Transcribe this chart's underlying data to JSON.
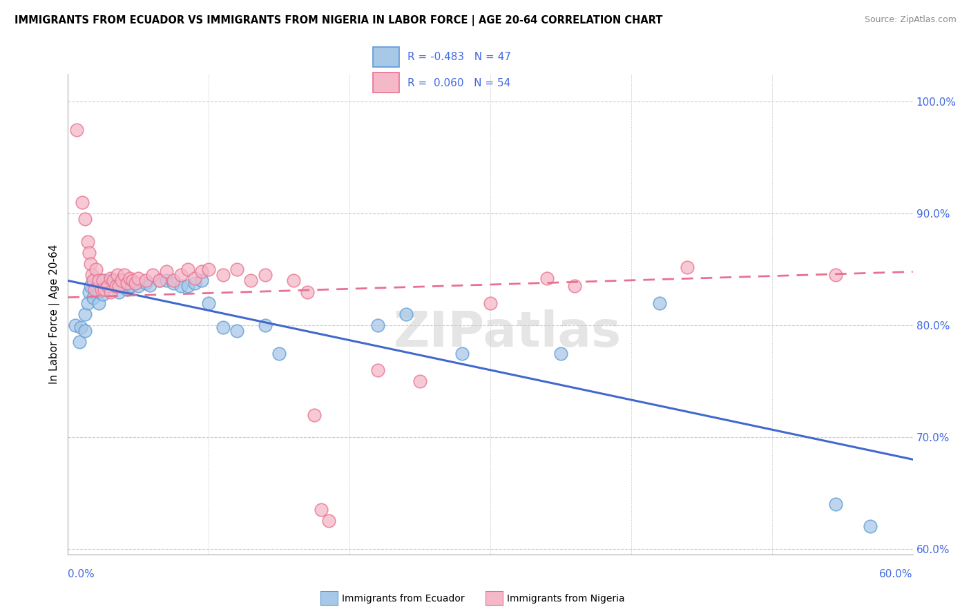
{
  "title": "IMMIGRANTS FROM ECUADOR VS IMMIGRANTS FROM NIGERIA IN LABOR FORCE | AGE 20-64 CORRELATION CHART",
  "source": "Source: ZipAtlas.com",
  "ylabel": "In Labor Force | Age 20-64",
  "y_ticks": [
    0.6,
    0.7,
    0.8,
    0.9,
    1.0
  ],
  "y_tick_labels": [
    "60.0%",
    "70.0%",
    "80.0%",
    "90.0%",
    "100.0%"
  ],
  "x_min": 0.0,
  "x_max": 0.6,
  "y_min": 0.595,
  "y_max": 1.025,
  "legend_r_ecuador": "-0.483",
  "legend_n_ecuador": "47",
  "legend_r_nigeria": "0.060",
  "legend_n_nigeria": "54",
  "watermark": "ZIPatlas",
  "ecuador_fill": "#A8C8E8",
  "ecuador_edge": "#5B9BD5",
  "nigeria_fill": "#F4B8C8",
  "nigeria_edge": "#E87090",
  "ecuador_line_color": "#4169CD",
  "nigeria_line_color": "#E87090",
  "ecuador_scatter": [
    [
      0.005,
      0.8
    ],
    [
      0.008,
      0.785
    ],
    [
      0.009,
      0.798
    ],
    [
      0.012,
      0.81
    ],
    [
      0.012,
      0.795
    ],
    [
      0.014,
      0.82
    ],
    [
      0.015,
      0.83
    ],
    [
      0.016,
      0.835
    ],
    [
      0.018,
      0.84
    ],
    [
      0.018,
      0.825
    ],
    [
      0.02,
      0.835
    ],
    [
      0.022,
      0.83
    ],
    [
      0.022,
      0.82
    ],
    [
      0.025,
      0.84
    ],
    [
      0.025,
      0.828
    ],
    [
      0.028,
      0.835
    ],
    [
      0.03,
      0.84
    ],
    [
      0.032,
      0.835
    ],
    [
      0.035,
      0.84
    ],
    [
      0.036,
      0.83
    ],
    [
      0.038,
      0.835
    ],
    [
      0.04,
      0.838
    ],
    [
      0.042,
      0.832
    ],
    [
      0.045,
      0.835
    ],
    [
      0.048,
      0.838
    ],
    [
      0.05,
      0.835
    ],
    [
      0.055,
      0.838
    ],
    [
      0.058,
      0.836
    ],
    [
      0.065,
      0.84
    ],
    [
      0.07,
      0.84
    ],
    [
      0.075,
      0.838
    ],
    [
      0.08,
      0.835
    ],
    [
      0.085,
      0.835
    ],
    [
      0.09,
      0.838
    ],
    [
      0.095,
      0.84
    ],
    [
      0.1,
      0.82
    ],
    [
      0.11,
      0.798
    ],
    [
      0.12,
      0.795
    ],
    [
      0.14,
      0.8
    ],
    [
      0.15,
      0.775
    ],
    [
      0.22,
      0.8
    ],
    [
      0.24,
      0.81
    ],
    [
      0.28,
      0.775
    ],
    [
      0.35,
      0.775
    ],
    [
      0.42,
      0.82
    ],
    [
      0.545,
      0.64
    ],
    [
      0.57,
      0.62
    ]
  ],
  "nigeria_scatter": [
    [
      0.006,
      0.975
    ],
    [
      0.01,
      0.91
    ],
    [
      0.012,
      0.895
    ],
    [
      0.014,
      0.875
    ],
    [
      0.015,
      0.865
    ],
    [
      0.016,
      0.855
    ],
    [
      0.017,
      0.845
    ],
    [
      0.018,
      0.84
    ],
    [
      0.019,
      0.832
    ],
    [
      0.02,
      0.85
    ],
    [
      0.022,
      0.84
    ],
    [
      0.024,
      0.832
    ],
    [
      0.025,
      0.84
    ],
    [
      0.026,
      0.832
    ],
    [
      0.028,
      0.835
    ],
    [
      0.03,
      0.842
    ],
    [
      0.03,
      0.83
    ],
    [
      0.032,
      0.84
    ],
    [
      0.034,
      0.835
    ],
    [
      0.035,
      0.845
    ],
    [
      0.036,
      0.835
    ],
    [
      0.038,
      0.84
    ],
    [
      0.04,
      0.845
    ],
    [
      0.042,
      0.838
    ],
    [
      0.044,
      0.842
    ],
    [
      0.046,
      0.84
    ],
    [
      0.048,
      0.838
    ],
    [
      0.05,
      0.842
    ],
    [
      0.055,
      0.84
    ],
    [
      0.06,
      0.845
    ],
    [
      0.065,
      0.84
    ],
    [
      0.07,
      0.848
    ],
    [
      0.075,
      0.84
    ],
    [
      0.08,
      0.845
    ],
    [
      0.085,
      0.85
    ],
    [
      0.09,
      0.842
    ],
    [
      0.095,
      0.848
    ],
    [
      0.1,
      0.85
    ],
    [
      0.11,
      0.845
    ],
    [
      0.12,
      0.85
    ],
    [
      0.13,
      0.84
    ],
    [
      0.14,
      0.845
    ],
    [
      0.16,
      0.84
    ],
    [
      0.17,
      0.83
    ],
    [
      0.175,
      0.72
    ],
    [
      0.18,
      0.635
    ],
    [
      0.185,
      0.625
    ],
    [
      0.22,
      0.76
    ],
    [
      0.25,
      0.75
    ],
    [
      0.3,
      0.82
    ],
    [
      0.34,
      0.842
    ],
    [
      0.36,
      0.835
    ],
    [
      0.44,
      0.852
    ],
    [
      0.545,
      0.845
    ]
  ],
  "ecuador_trend_x": [
    0.0,
    0.6
  ],
  "ecuador_trend_y": [
    0.84,
    0.68
  ],
  "nigeria_trend_x": [
    0.0,
    0.6
  ],
  "nigeria_trend_y": [
    0.825,
    0.848
  ],
  "background_color": "#FFFFFF",
  "grid_color": "#CCCCCC"
}
